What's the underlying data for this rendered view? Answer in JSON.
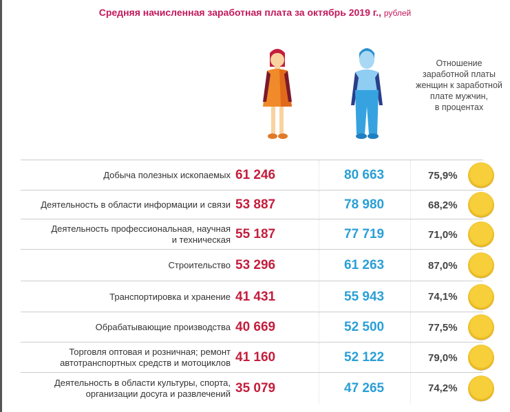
{
  "chart_data": {
    "type": "table",
    "title": "Средняя начисленная заработная плата за октябрь 2019 г.,",
    "unit": "рублей",
    "ratio_header": [
      "Отношение",
      "заработной платы",
      "женщин к заработной",
      "плате мужчин,",
      "в процентах"
    ],
    "rows": [
      {
        "label": [
          "Добыча полезных ископаемых"
        ],
        "women": "61 246",
        "men": "80 663",
        "ratio": "75,9%"
      },
      {
        "label": [
          "Деятельность в области информации и связи"
        ],
        "women": "53 887",
        "men": "78 980",
        "ratio": "68,2%"
      },
      {
        "label": [
          "Деятельность профессиональная, научная",
          "и техническая"
        ],
        "women": "55 187",
        "men": "77 719",
        "ratio": "71,0%"
      },
      {
        "label": [
          "Строительство"
        ],
        "women": "53 296",
        "men": "61 263",
        "ratio": "87,0%"
      },
      {
        "label": [
          "Транспортировка и хранение"
        ],
        "women": "41 431",
        "men": "55 943",
        "ratio": "74,1%"
      },
      {
        "label": [
          "Обрабатывающие производства"
        ],
        "women": "40 669",
        "men": "52 500",
        "ratio": "77,5%"
      },
      {
        "label": [
          "Торговля оптовая и розничная; ремонт",
          "автотранспортных средств и мотоциклов"
        ],
        "women": "41 160",
        "men": "52 122",
        "ratio": "79,0%"
      },
      {
        "label": [
          "Деятельность в области культуры, спорта,",
          "организации досуга и развлечений"
        ],
        "women": "35 079",
        "men": "47 265",
        "ratio": "74,2%"
      }
    ],
    "colors": {
      "women": "#c41d3c",
      "men": "#2a9fd6",
      "title": "#c2185b"
    }
  }
}
